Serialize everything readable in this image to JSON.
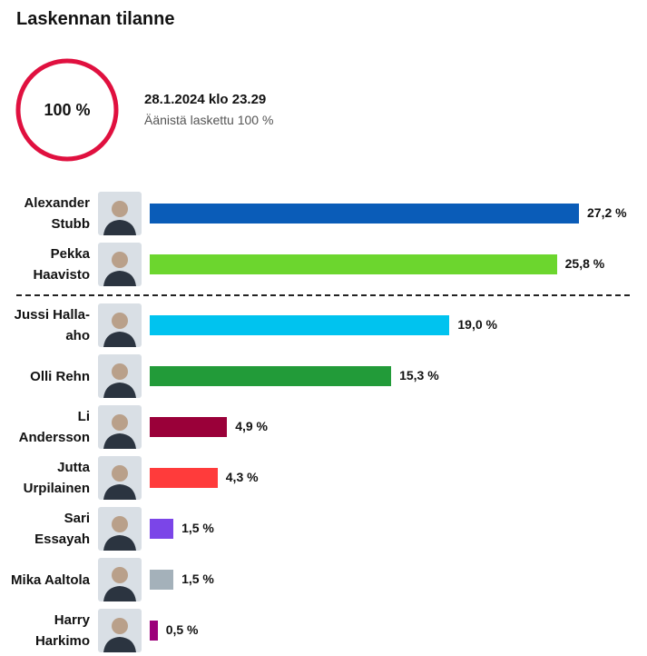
{
  "chart_data": {
    "type": "bar",
    "title": "Laskennan tilanne",
    "progress": 100,
    "progress_label": "100 %",
    "timestamp": "28.1.2024 klo 23.29",
    "subtitle": "Äänistä laskettu 100 %",
    "categories": [
      "Alexander Stubb",
      "Pekka Haavisto",
      "Jussi Halla-aho",
      "Olli Rehn",
      "Li Andersson",
      "Jutta Urpilainen",
      "Sari Essayah",
      "Mika Aaltola",
      "Harry Harkimo"
    ],
    "values": [
      27.2,
      25.8,
      19.0,
      15.3,
      4.9,
      4.3,
      1.5,
      1.5,
      0.5
    ],
    "value_labels": [
      "27,2 %",
      "25,8 %",
      "19,0 %",
      "15,3 %",
      "4,9 %",
      "4,3 %",
      "1,5 %",
      "1,5 %",
      "0,5 %"
    ],
    "colors": [
      "#0a5cb8",
      "#6cd62e",
      "#00c3ef",
      "#229b39",
      "#9a0039",
      "#ff3b3b",
      "#7b45e8",
      "#a4b1ba",
      "#9c007a"
    ]
  }
}
